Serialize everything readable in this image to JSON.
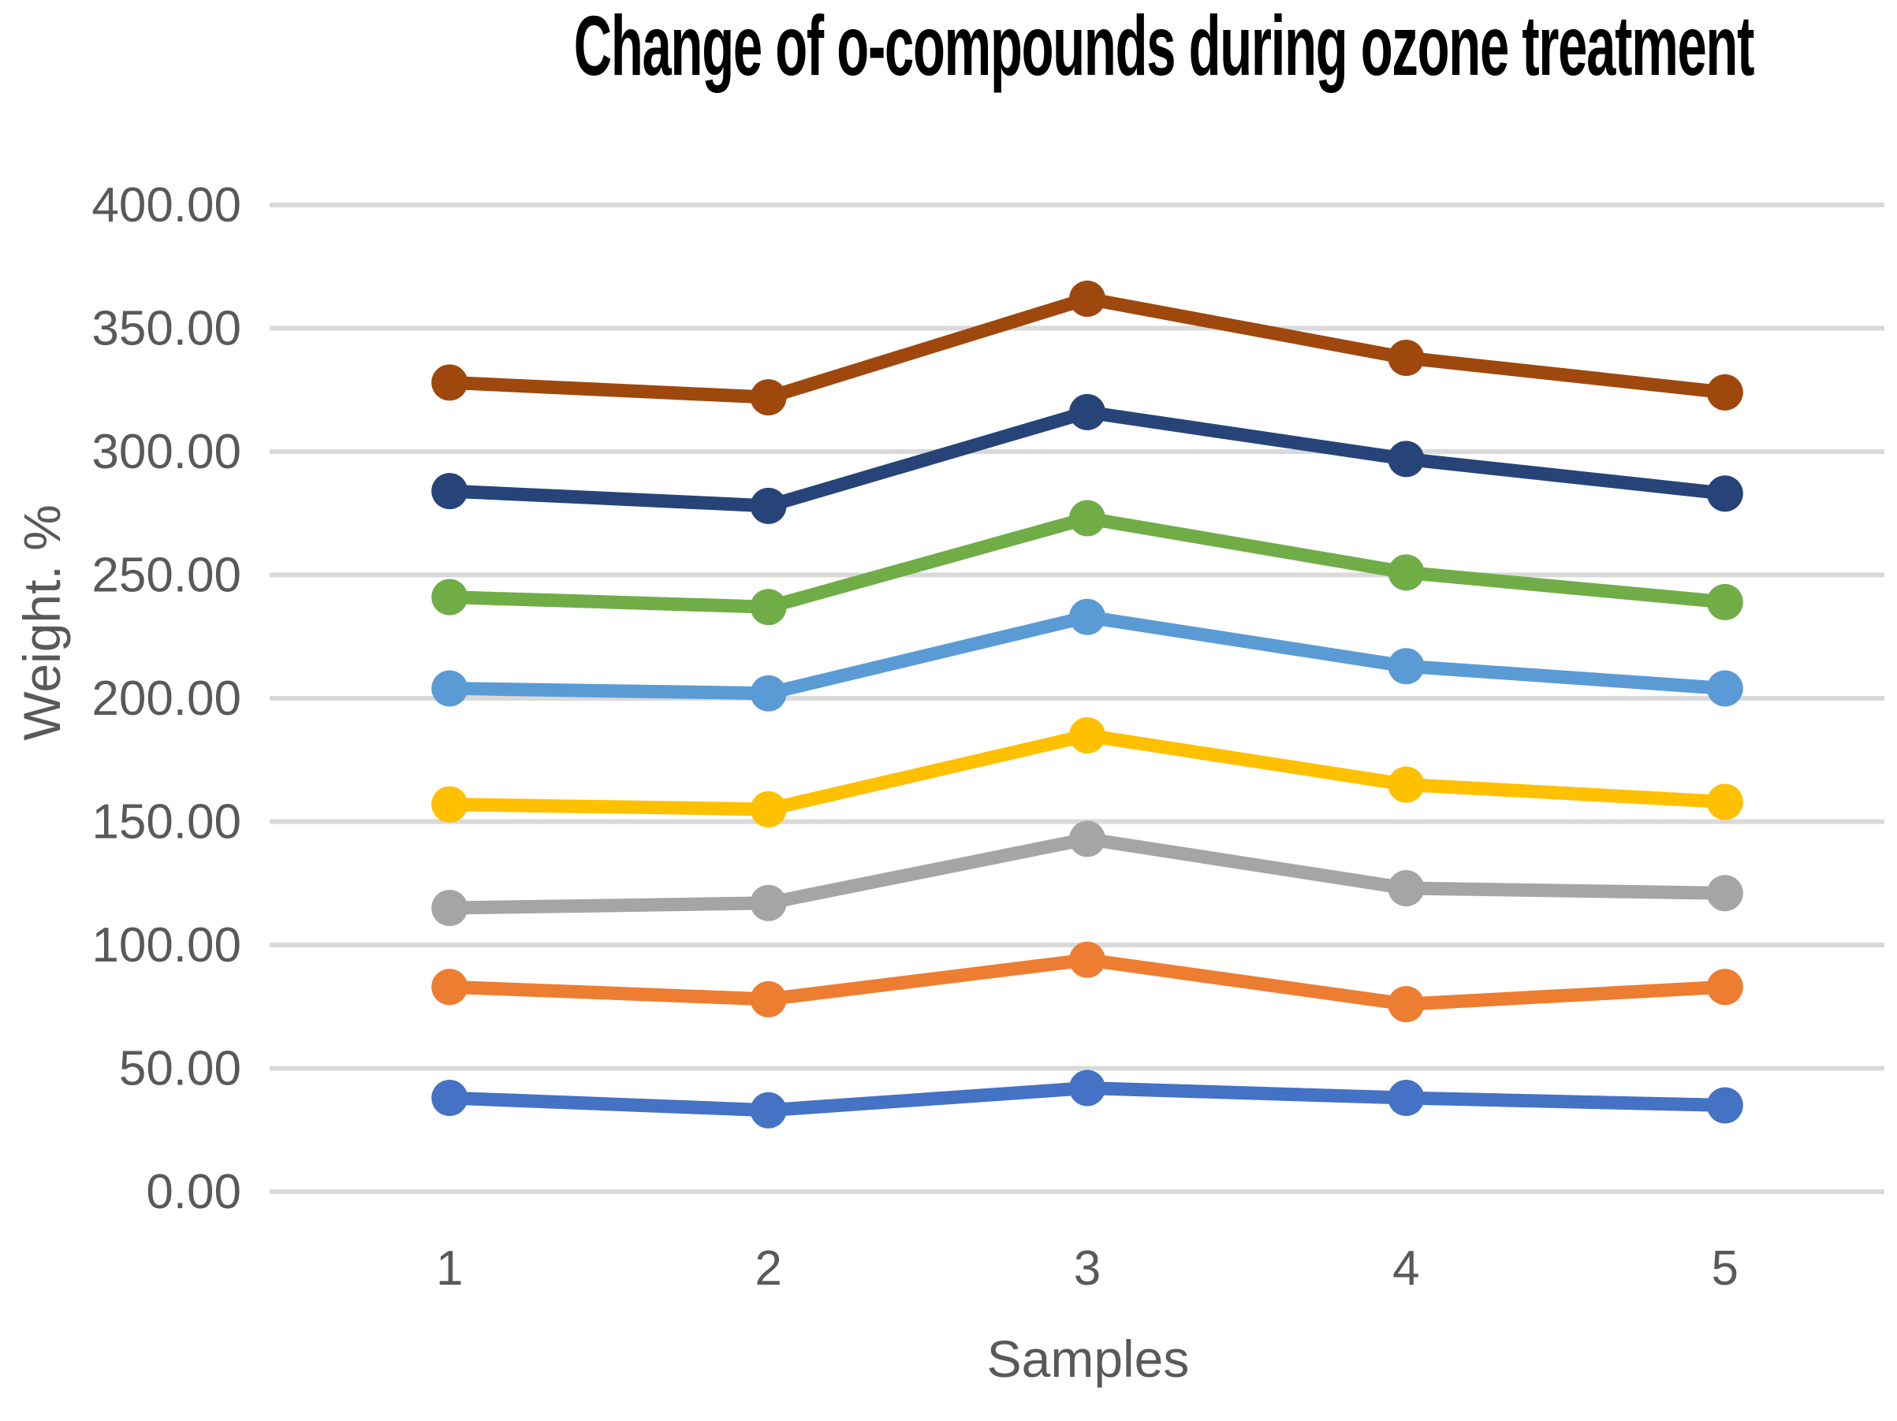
{
  "chart_data": {
    "type": "line",
    "title": "Change of o-compounds during ozone treatment",
    "xlabel": "Samples",
    "ylabel": "Weight. %",
    "categories": [
      "1",
      "2",
      "3",
      "4",
      "5"
    ],
    "ylim": [
      0,
      400
    ],
    "ytick_step": 50,
    "ytick_values": [
      0,
      50,
      100,
      150,
      200,
      250,
      300,
      350,
      400
    ],
    "ytick_labels": [
      "0.00",
      "50.00",
      "100.00",
      "150.00",
      "200.00",
      "250.00",
      "300.00",
      "350.00",
      "400.00"
    ],
    "grid": true,
    "legend_position": "none",
    "x": [
      1,
      2,
      3,
      4,
      5
    ],
    "series": [
      {
        "color": "#9E480E",
        "values": [
          328,
          322,
          362,
          338,
          324
        ]
      },
      {
        "color": "#264478",
        "values": [
          284,
          278,
          316,
          297,
          283
        ]
      },
      {
        "color": "#70AD47",
        "values": [
          241,
          237,
          273,
          251,
          239
        ]
      },
      {
        "color": "#5B9BD5",
        "values": [
          204,
          202,
          233,
          213,
          204
        ]
      },
      {
        "color": "#FFC000",
        "values": [
          157,
          155,
          185,
          165,
          158
        ]
      },
      {
        "color": "#A5A5A5",
        "values": [
          115,
          117,
          143,
          123,
          121
        ]
      },
      {
        "color": "#ED7D31",
        "values": [
          83,
          78,
          94,
          76,
          83
        ]
      },
      {
        "color": "#4472C4",
        "values": [
          38,
          33,
          42,
          38,
          35
        ]
      }
    ]
  },
  "styles": {
    "background": "#FFFFFF",
    "gridline_color": "#D9D9D9",
    "tick_color": "#D9D9D9",
    "axis_text_color": "#595959",
    "title_color": "#000000"
  }
}
